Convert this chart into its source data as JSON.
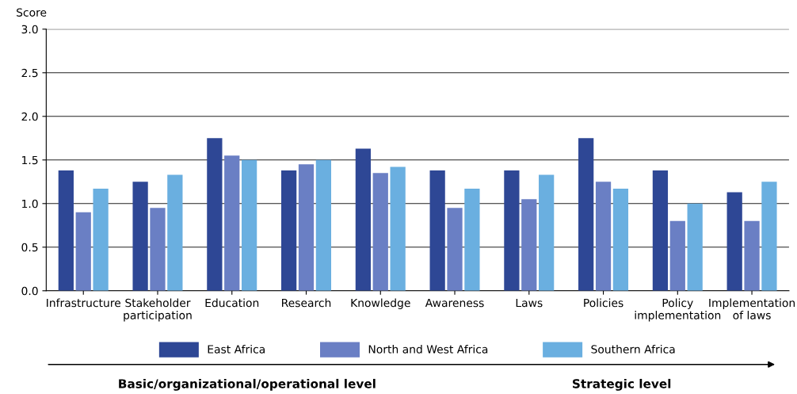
{
  "chart_data": {
    "type": "bar",
    "ylabel": "Score",
    "categories": [
      "Infrastructure",
      "Stakeholder\nparticipation",
      "Education",
      "Research",
      "Knowledge",
      "Awareness",
      "Laws",
      "Policies",
      "Policy\nimplementation",
      "Implementation\nof laws"
    ],
    "series": [
      {
        "name": "East Africa",
        "color": "#2e4795",
        "values": [
          1.38,
          1.25,
          1.75,
          1.38,
          1.63,
          1.38,
          1.38,
          1.75,
          1.38,
          1.13
        ]
      },
      {
        "name": "North and West Africa",
        "color": "#6a7fc4",
        "values": [
          0.9,
          0.95,
          1.55,
          1.45,
          1.35,
          0.95,
          1.05,
          1.25,
          0.8,
          0.8
        ]
      },
      {
        "name": "Southern Africa",
        "color": "#6aafe0",
        "values": [
          1.17,
          1.33,
          1.5,
          1.5,
          1.42,
          1.17,
          1.33,
          1.17,
          1.0,
          1.25
        ]
      }
    ],
    "ylim": [
      0,
      3
    ],
    "yticks": [
      {
        "value": 0,
        "label": "0.0"
      },
      {
        "value": 0.5,
        "label": "0.5"
      },
      {
        "value": 1,
        "label": "1.0"
      },
      {
        "value": 1.5,
        "label": "1.5"
      },
      {
        "value": 2,
        "label": "2.0"
      },
      {
        "value": 2.5,
        "label": "2.5"
      },
      {
        "value": 3,
        "label": "3.0"
      }
    ],
    "grid": "y",
    "legend": "bottom",
    "annotations": [
      "Basic/organizational/operational level",
      "Strategic level"
    ]
  }
}
